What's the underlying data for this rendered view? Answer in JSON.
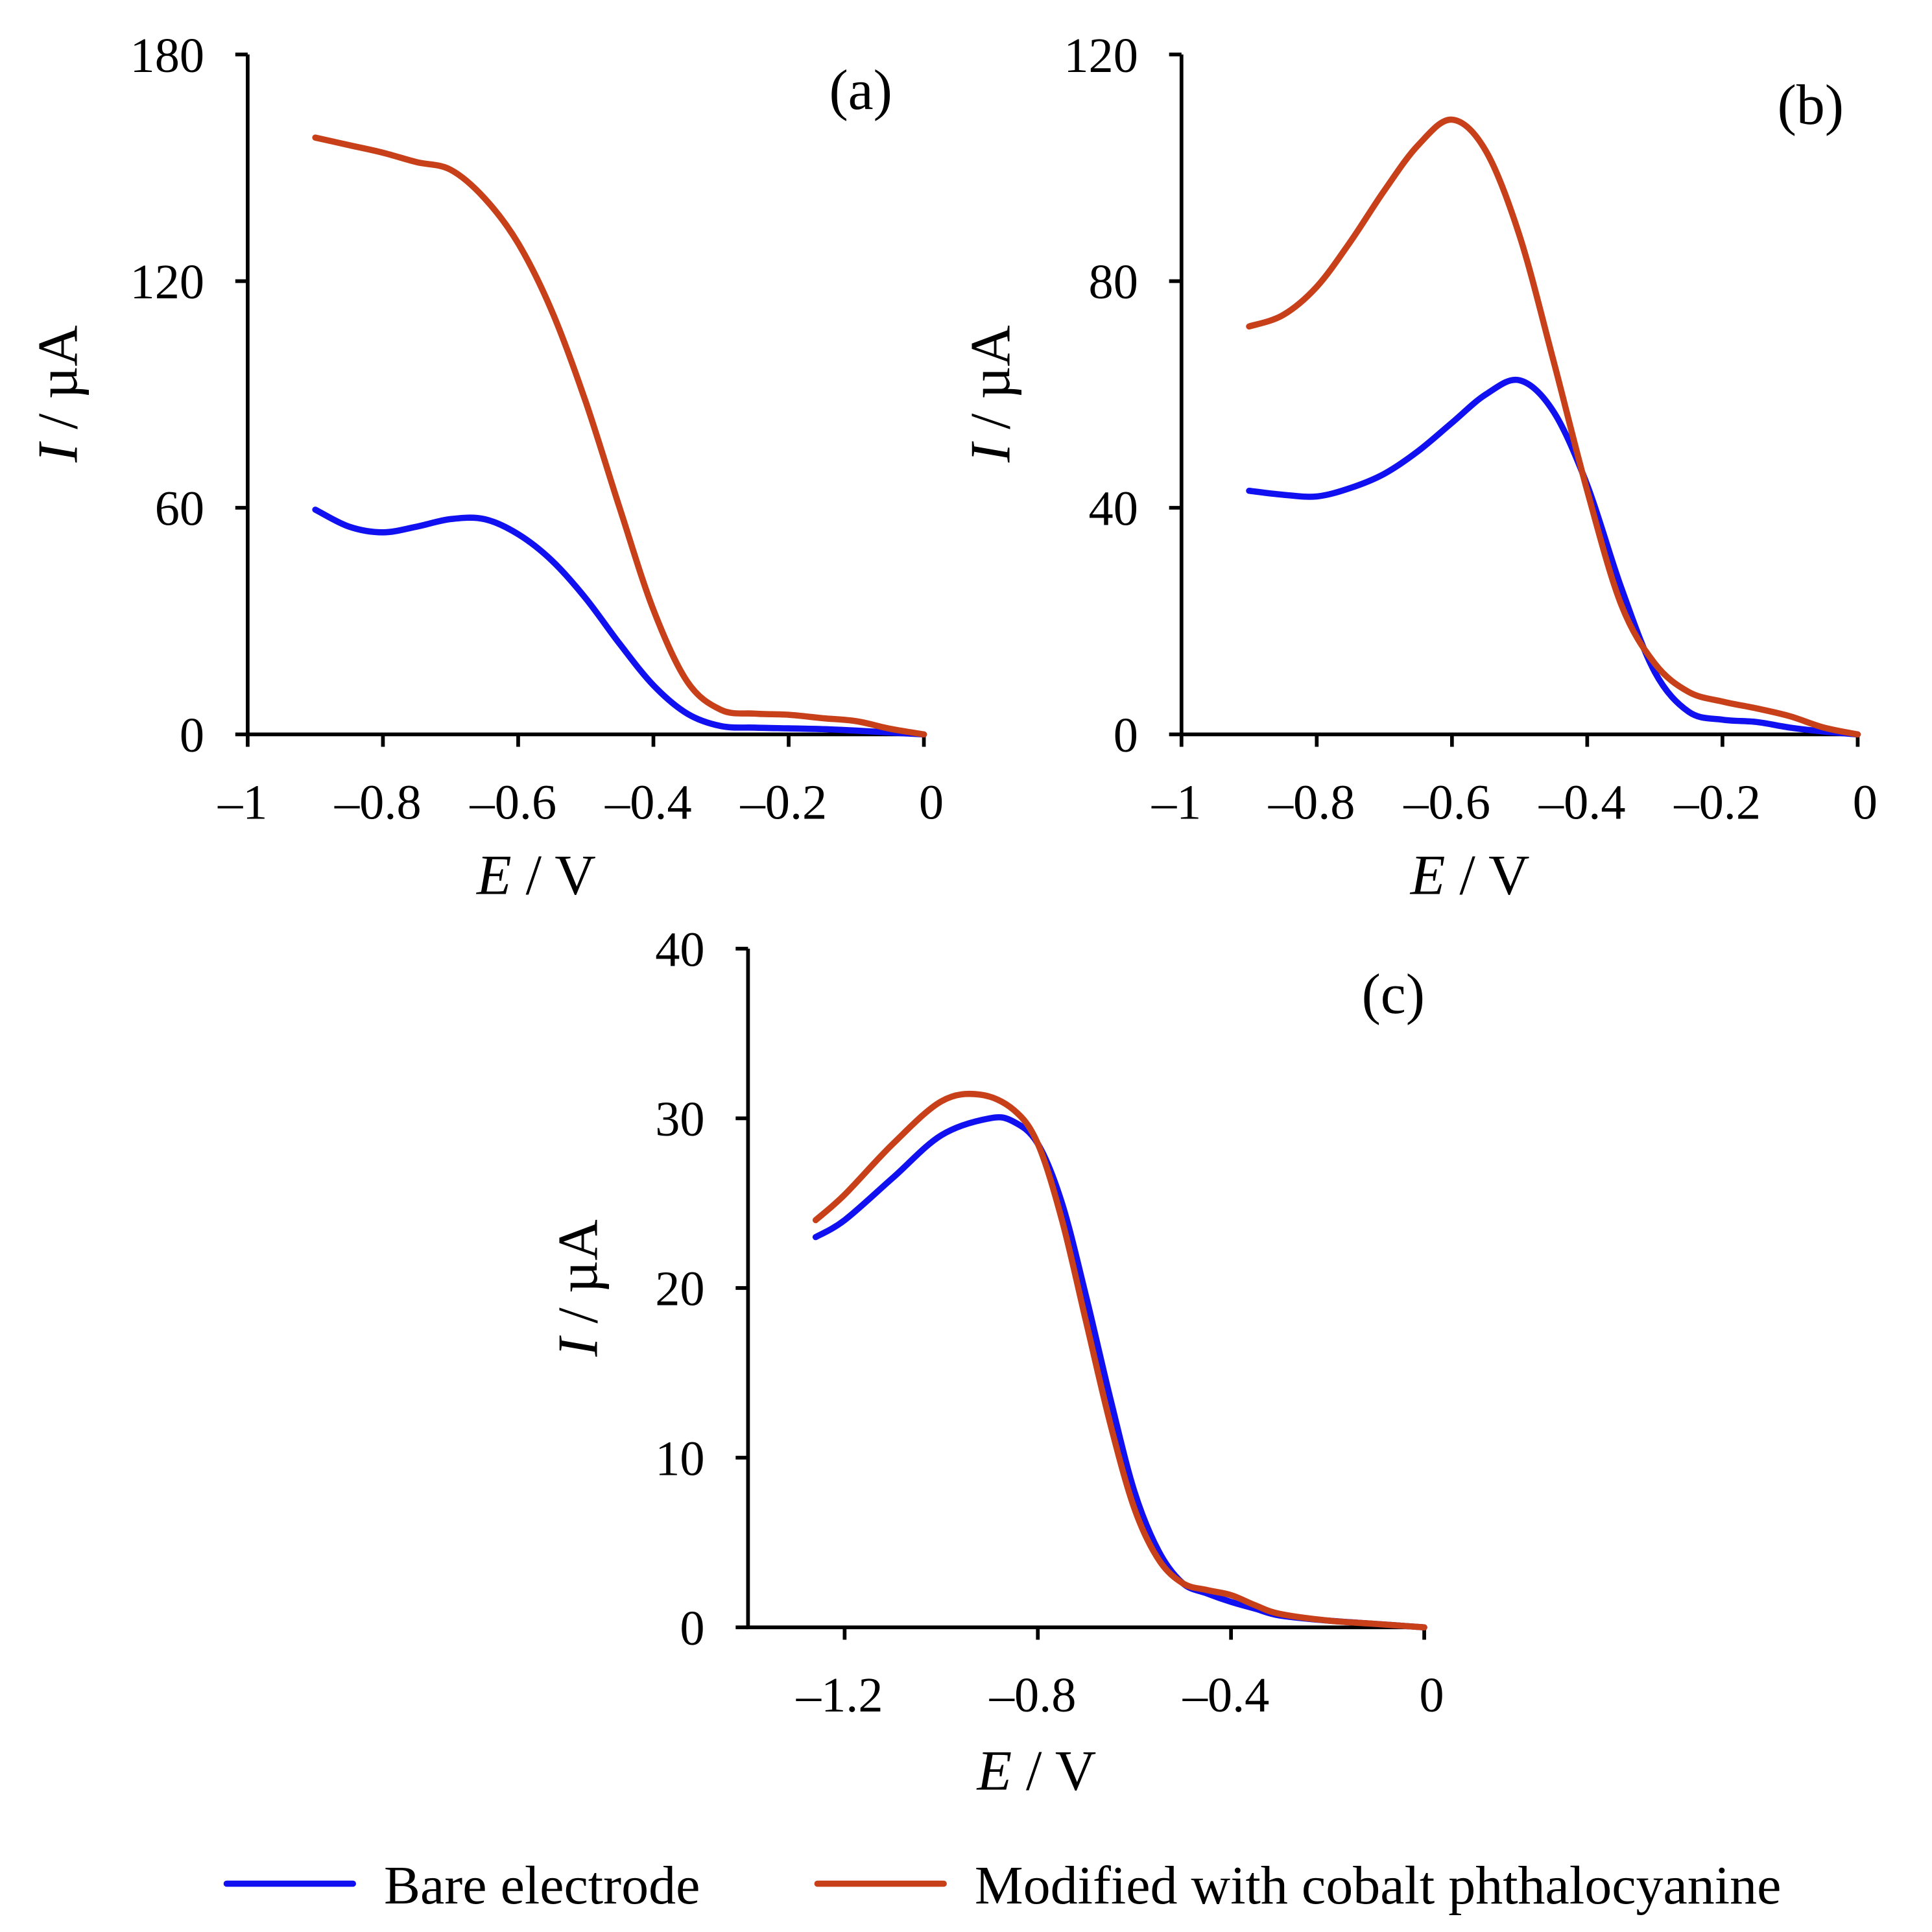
{
  "colors": {
    "bare": "#1010f0",
    "modified": "#c8401a"
  },
  "legend": [
    {
      "label": "Bare electrode",
      "series": "bare"
    },
    {
      "label": "Modified with cobalt phthalocyanine",
      "series": "modified"
    }
  ],
  "chart_data": [
    {
      "type": "line",
      "panel_label": "(a)",
      "xlabel_italic": "E",
      "xlabel_unit": " / V",
      "ylabel_italic": "I",
      "ylabel_unit": " / µA",
      "xlim": [
        -1,
        0
      ],
      "ylim": [
        0,
        180
      ],
      "xticks": [
        -1,
        -0.8,
        -0.6,
        -0.4,
        -0.2,
        0
      ],
      "xtick_labels": [
        "–1",
        "–0.8",
        "–0.6",
        "–0.4",
        "–0.2",
        "0"
      ],
      "yticks": [
        0,
        60,
        120,
        180
      ],
      "ytick_labels": [
        "0",
        "60",
        "120",
        "180"
      ],
      "series": [
        {
          "name": "Bare electrode",
          "key": "bare",
          "x": [
            -0.9,
            -0.85,
            -0.8,
            -0.75,
            -0.7,
            -0.65,
            -0.6,
            -0.55,
            -0.5,
            -0.45,
            -0.4,
            -0.35,
            -0.3,
            -0.25,
            -0.2,
            -0.15,
            -0.1,
            -0.05,
            0
          ],
          "y": [
            59.5,
            55,
            53.5,
            55,
            57,
            57,
            53,
            46,
            36,
            24,
            13,
            5.5,
            2.2,
            1.8,
            1.6,
            1.4,
            1,
            0.5,
            0
          ]
        },
        {
          "name": "Modified with cobalt phthalocyanine",
          "key": "modified",
          "x": [
            -0.9,
            -0.85,
            -0.8,
            -0.75,
            -0.7,
            -0.65,
            -0.6,
            -0.55,
            -0.5,
            -0.45,
            -0.4,
            -0.35,
            -0.3,
            -0.25,
            -0.2,
            -0.15,
            -0.1,
            -0.05,
            0
          ],
          "y": [
            158,
            156,
            154,
            151.5,
            149.5,
            142,
            130,
            112,
            88,
            60,
            33,
            14,
            6.5,
            5.5,
            5.2,
            4.3,
            3.5,
            1.5,
            0
          ]
        }
      ]
    },
    {
      "type": "line",
      "panel_label": "(b)",
      "xlabel_italic": "E",
      "xlabel_unit": " / V",
      "ylabel_italic": "I",
      "ylabel_unit": " / µA",
      "xlim": [
        -1,
        0
      ],
      "ylim": [
        0,
        120
      ],
      "xticks": [
        -1,
        -0.8,
        -0.6,
        -0.4,
        -0.2,
        0
      ],
      "xtick_labels": [
        "–1",
        "–0.8",
        "–0.6",
        "–0.4",
        "–0.2",
        "0"
      ],
      "yticks": [
        0,
        40,
        80,
        120
      ],
      "ytick_labels": [
        "0",
        "40",
        "80",
        "120"
      ],
      "series": [
        {
          "name": "Bare electrode",
          "key": "bare",
          "x": [
            -0.9,
            -0.85,
            -0.8,
            -0.75,
            -0.7,
            -0.65,
            -0.6,
            -0.55,
            -0.5,
            -0.45,
            -0.4,
            -0.35,
            -0.3,
            -0.25,
            -0.2,
            -0.15,
            -0.1,
            -0.05,
            0
          ],
          "y": [
            43,
            42.3,
            42,
            43.5,
            46,
            50,
            55,
            60,
            62.5,
            57,
            44,
            26,
            11,
            4,
            2.6,
            2.2,
            1.2,
            0.5,
            0
          ]
        },
        {
          "name": "Modified with cobalt phthalocyanine",
          "key": "modified",
          "x": [
            -0.9,
            -0.85,
            -0.8,
            -0.75,
            -0.7,
            -0.65,
            -0.6,
            -0.55,
            -0.5,
            -0.45,
            -0.4,
            -0.35,
            -0.3,
            -0.25,
            -0.2,
            -0.15,
            -0.1,
            -0.05,
            0
          ],
          "y": [
            72,
            74,
            79,
            87,
            96,
            104,
            108.5,
            103,
            88,
            66,
            43,
            23,
            12.5,
            7.5,
            5.8,
            4.6,
            3.2,
            1.2,
            0
          ]
        }
      ]
    },
    {
      "type": "line",
      "panel_label": "(c)",
      "xlabel_italic": "E",
      "xlabel_unit": " / V",
      "ylabel_italic": "I",
      "ylabel_unit": " / µA",
      "xlim": [
        -1.4,
        0
      ],
      "ylim": [
        0,
        40
      ],
      "xticks": [
        -1.2,
        -0.8,
        -0.4,
        0
      ],
      "xtick_labels": [
        "–1.2",
        "–0.8",
        "–0.4",
        "0"
      ],
      "yticks": [
        0,
        10,
        20,
        30,
        40
      ],
      "ytick_labels": [
        "0",
        "10",
        "20",
        "30",
        "40"
      ],
      "series": [
        {
          "name": "Bare electrode",
          "key": "bare",
          "x": [
            -1.26,
            -1.2,
            -1.1,
            -1.0,
            -0.9,
            -0.85,
            -0.8,
            -0.75,
            -0.7,
            -0.65,
            -0.6,
            -0.55,
            -0.5,
            -0.45,
            -0.4,
            -0.35,
            -0.3,
            -0.2,
            -0.1,
            0
          ],
          "y": [
            23,
            24,
            26.5,
            29,
            30,
            29.8,
            28.5,
            25,
            19.5,
            13.5,
            8,
            4.5,
            2.6,
            2,
            1.5,
            1.1,
            0.7,
            0.4,
            0.2,
            0
          ]
        },
        {
          "name": "Modified with cobalt phthalocyanine",
          "key": "modified",
          "x": [
            -1.26,
            -1.2,
            -1.1,
            -1.0,
            -0.92,
            -0.85,
            -0.8,
            -0.75,
            -0.7,
            -0.65,
            -0.6,
            -0.55,
            -0.5,
            -0.45,
            -0.4,
            -0.35,
            -0.3,
            -0.2,
            -0.1,
            0
          ],
          "y": [
            24,
            25.5,
            28.5,
            31,
            31.4,
            30.5,
            28.5,
            24,
            18,
            12,
            7,
            4,
            2.6,
            2.2,
            1.9,
            1.3,
            0.8,
            0.4,
            0.2,
            0
          ]
        }
      ]
    }
  ]
}
